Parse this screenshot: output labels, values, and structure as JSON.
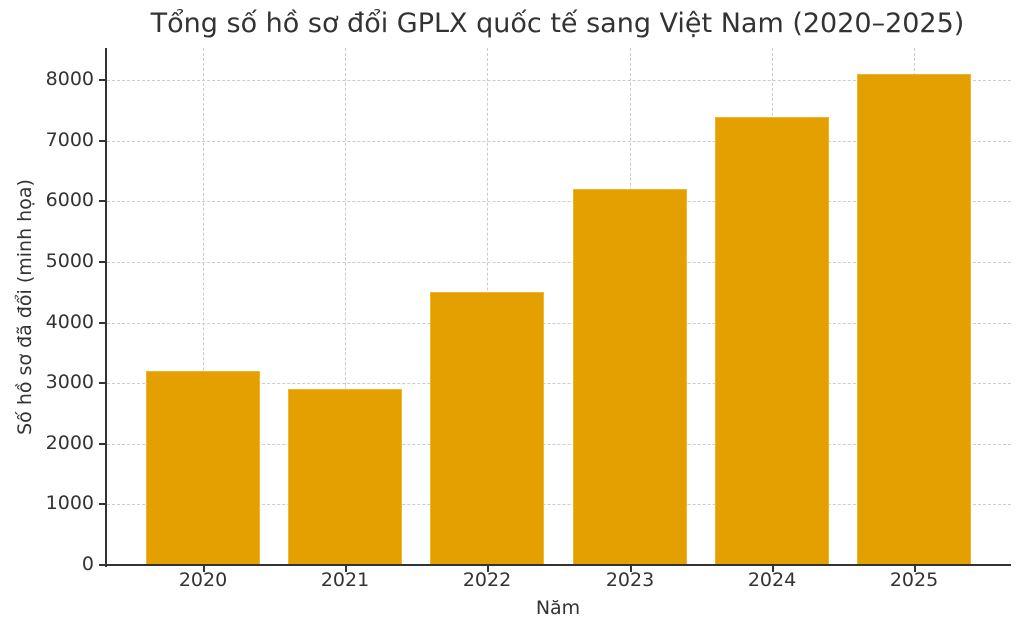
{
  "chart_data": {
    "type": "bar",
    "title": "Tổng số hồ sơ đổi GPLX quốc tế sang Việt Nam (2020–2025)",
    "xlabel": "Năm",
    "ylabel": "Số hồ sơ đã đổi (minh họa)",
    "categories": [
      "2020",
      "2021",
      "2022",
      "2023",
      "2024",
      "2025"
    ],
    "values": [
      3200,
      2900,
      4500,
      6200,
      7400,
      8100
    ],
    "ylim": [
      0,
      8500
    ],
    "yticks": [
      "0",
      "1000",
      "2000",
      "3000",
      "4000",
      "5000",
      "6000",
      "7000",
      "8000"
    ],
    "grid": true,
    "legend": null,
    "bar_color": "#e49f00"
  }
}
